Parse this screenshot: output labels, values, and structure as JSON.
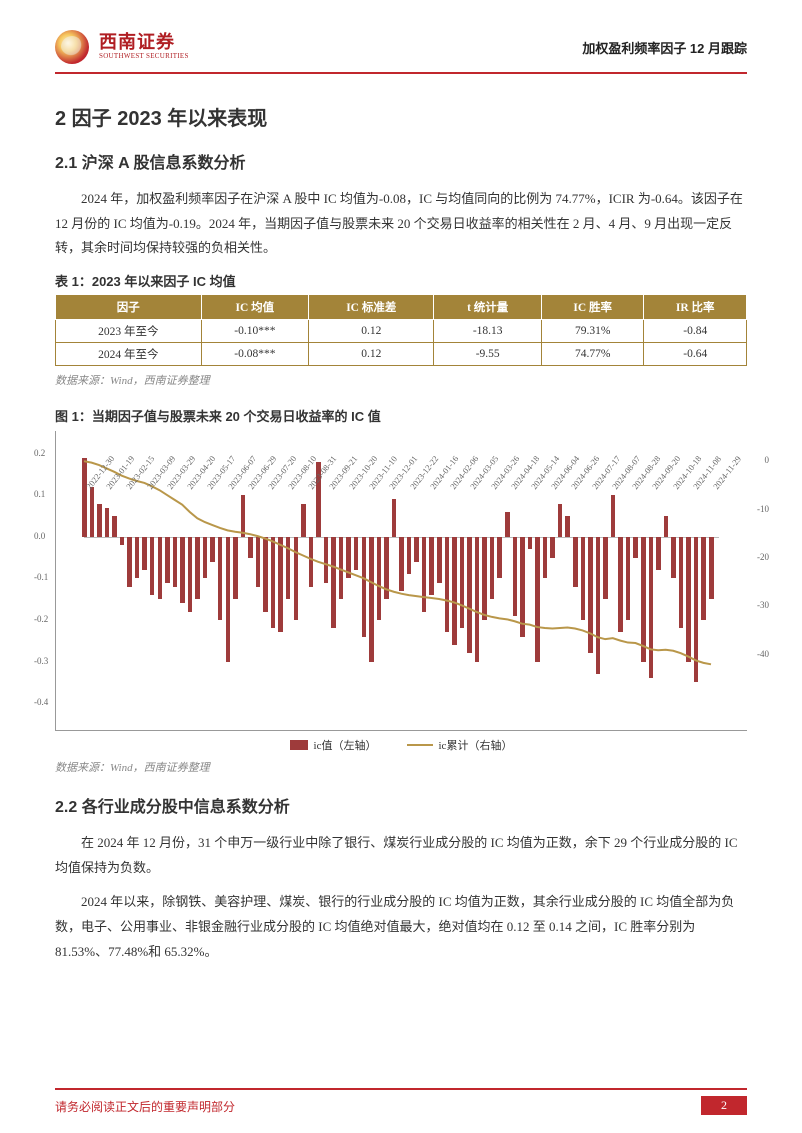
{
  "brand": {
    "cn": "西南证券",
    "en": "SOUTHWEST SECURITIES"
  },
  "header_right": "加权盈利频率因子 12 月跟踪",
  "h1": "2 因子 2023 年以来表现",
  "s21": {
    "title": "2.1 沪深 A 股信息系数分析",
    "p1": "2024 年，加权盈利频率因子在沪深 A 股中 IC 均值为-0.08，IC 与均值同向的比例为 74.77%，ICIR 为-0.64。该因子在 12 月份的 IC 均值为-0.19。2024 年，当期因子值与股票未来 20 个交易日收益率的相关性在 2 月、4 月、9 月出现一定反转，其余时间均保持较强的负相关性。"
  },
  "table1": {
    "title": "表 1：2023 年以来因子 IC 均值",
    "headers": [
      "因子",
      "IC 均值",
      "IC 标准差",
      "t 统计量",
      "IC 胜率",
      "IR 比率"
    ],
    "rows": [
      [
        "2023 年至今",
        "-0.10***",
        "0.12",
        "-18.13",
        "79.31%",
        "-0.84"
      ],
      [
        "2024 年至今",
        "-0.08***",
        "0.12",
        "-9.55",
        "74.77%",
        "-0.64"
      ]
    ],
    "source": "数据来源：Wind，西南证券整理"
  },
  "fig1": {
    "title": "图 1：当期因子值与股票未来 20 个交易日收益率的 IC 值",
    "type": "bar+line",
    "left_ylim": [
      -0.4,
      0.24
    ],
    "left_ticks": [
      -0.4,
      -0.3,
      -0.2,
      -0.1,
      0.0,
      0.1,
      0.2
    ],
    "right_ylim": [
      -50,
      5
    ],
    "right_ticks": [
      0,
      -10,
      -20,
      -30,
      -40
    ],
    "bar_color": "#9e3b3b",
    "line_color": "#b9974a",
    "bg": "#ffffff",
    "x_dates": [
      "2022-12-30",
      "2023-01-19",
      "2023-02-15",
      "2023-03-09",
      "2023-03-29",
      "2023-04-20",
      "2023-05-17",
      "2023-06-07",
      "2023-06-29",
      "2023-07-20",
      "2023-08-10",
      "2023-08-31",
      "2023-09-21",
      "2023-10-20",
      "2023-11-10",
      "2023-12-01",
      "2023-12-22",
      "2024-01-16",
      "2024-02-06",
      "2024-03-05",
      "2024-03-26",
      "2024-04-18",
      "2024-05-14",
      "2024-06-04",
      "2024-06-26",
      "2024-07-17",
      "2024-08-07",
      "2024-08-28",
      "2024-09-20",
      "2024-10-18",
      "2024-11-08",
      "2024-11-29"
    ],
    "ic_values": [
      0.19,
      0.12,
      0.08,
      0.07,
      0.05,
      -0.02,
      -0.12,
      -0.1,
      -0.08,
      -0.14,
      -0.15,
      -0.11,
      -0.12,
      -0.16,
      -0.18,
      -0.15,
      -0.1,
      -0.06,
      -0.2,
      -0.3,
      -0.15,
      0.1,
      -0.05,
      -0.12,
      -0.18,
      -0.22,
      -0.23,
      -0.15,
      -0.2,
      0.08,
      -0.12,
      0.18,
      -0.11,
      -0.22,
      -0.15,
      -0.1,
      -0.08,
      -0.24,
      -0.3,
      -0.2,
      -0.15,
      0.09,
      -0.13,
      -0.09,
      -0.06,
      -0.18,
      -0.14,
      -0.11,
      -0.23,
      -0.26,
      -0.22,
      -0.28,
      -0.3,
      -0.2,
      -0.15,
      -0.1,
      0.06,
      -0.19,
      -0.24,
      -0.03,
      -0.3,
      -0.1,
      -0.05,
      0.08,
      0.05,
      -0.12,
      -0.2,
      -0.28,
      -0.33,
      -0.15,
      0.1,
      -0.23,
      -0.2,
      -0.05,
      -0.3,
      -0.34,
      -0.08,
      0.05,
      -0.1,
      -0.22,
      -0.3,
      -0.35,
      -0.2,
      -0.15
    ],
    "cum_line": [
      0,
      -0.3,
      -0.8,
      -1.5,
      -2.2,
      -3.0,
      -3.6,
      -4.1,
      -4.5,
      -5.2,
      -6.0,
      -7.0,
      -8.0,
      -9.0,
      -10.5,
      -11.8,
      -12.6,
      -13.2,
      -13.8,
      -14.3,
      -14.6,
      -14.8,
      -15.1,
      -15.5,
      -16.0,
      -16.6,
      -17.3,
      -18.0,
      -18.8,
      -19.5,
      -20.2,
      -20.8,
      -21.3,
      -21.8,
      -22.4,
      -23.0,
      -23.6,
      -24.2,
      -25.0,
      -25.8,
      -26.5,
      -27.0,
      -27.4,
      -27.7,
      -27.9,
      -28.1,
      -28.3,
      -28.5,
      -28.8,
      -29.2,
      -29.8,
      -30.5,
      -31.2,
      -31.8,
      -32.2,
      -32.5,
      -32.7,
      -33.1,
      -33.6,
      -33.8,
      -34.3,
      -34.5,
      -34.6,
      -34.5,
      -34.4,
      -34.6,
      -35.0,
      -35.6,
      -36.4,
      -36.8,
      -36.6,
      -37.1,
      -37.5,
      -37.6,
      -38.2,
      -38.9,
      -39.1,
      -39.0,
      -39.2,
      -39.7,
      -40.4,
      -41.2,
      -41.7,
      -42.0
    ],
    "legend": {
      "bar": "ic值（左轴）",
      "line": "ic累计（右轴）"
    },
    "source": "数据来源：Wind，西南证券整理"
  },
  "s22": {
    "title": "2.2 各行业成分股中信息系数分析",
    "p1": "在 2024 年 12 月份，31 个申万一级行业中除了银行、煤炭行业成分股的 IC 均值为正数，余下 29 个行业成分股的 IC 均值保持为负数。",
    "p2": "2024 年以来，除钢铁、美容护理、煤炭、银行的行业成分股的 IC 均值为正数，其余行业成分股的 IC 均值全部为负数，电子、公用事业、非银金融行业成分股的 IC 均值绝对值最大，绝对值均在 0.12 至 0.14 之间，IC 胜率分别为 81.53%、77.48%和 65.32%。"
  },
  "footer": {
    "left": "请务必阅读正文后的重要声明部分",
    "page": "2"
  }
}
